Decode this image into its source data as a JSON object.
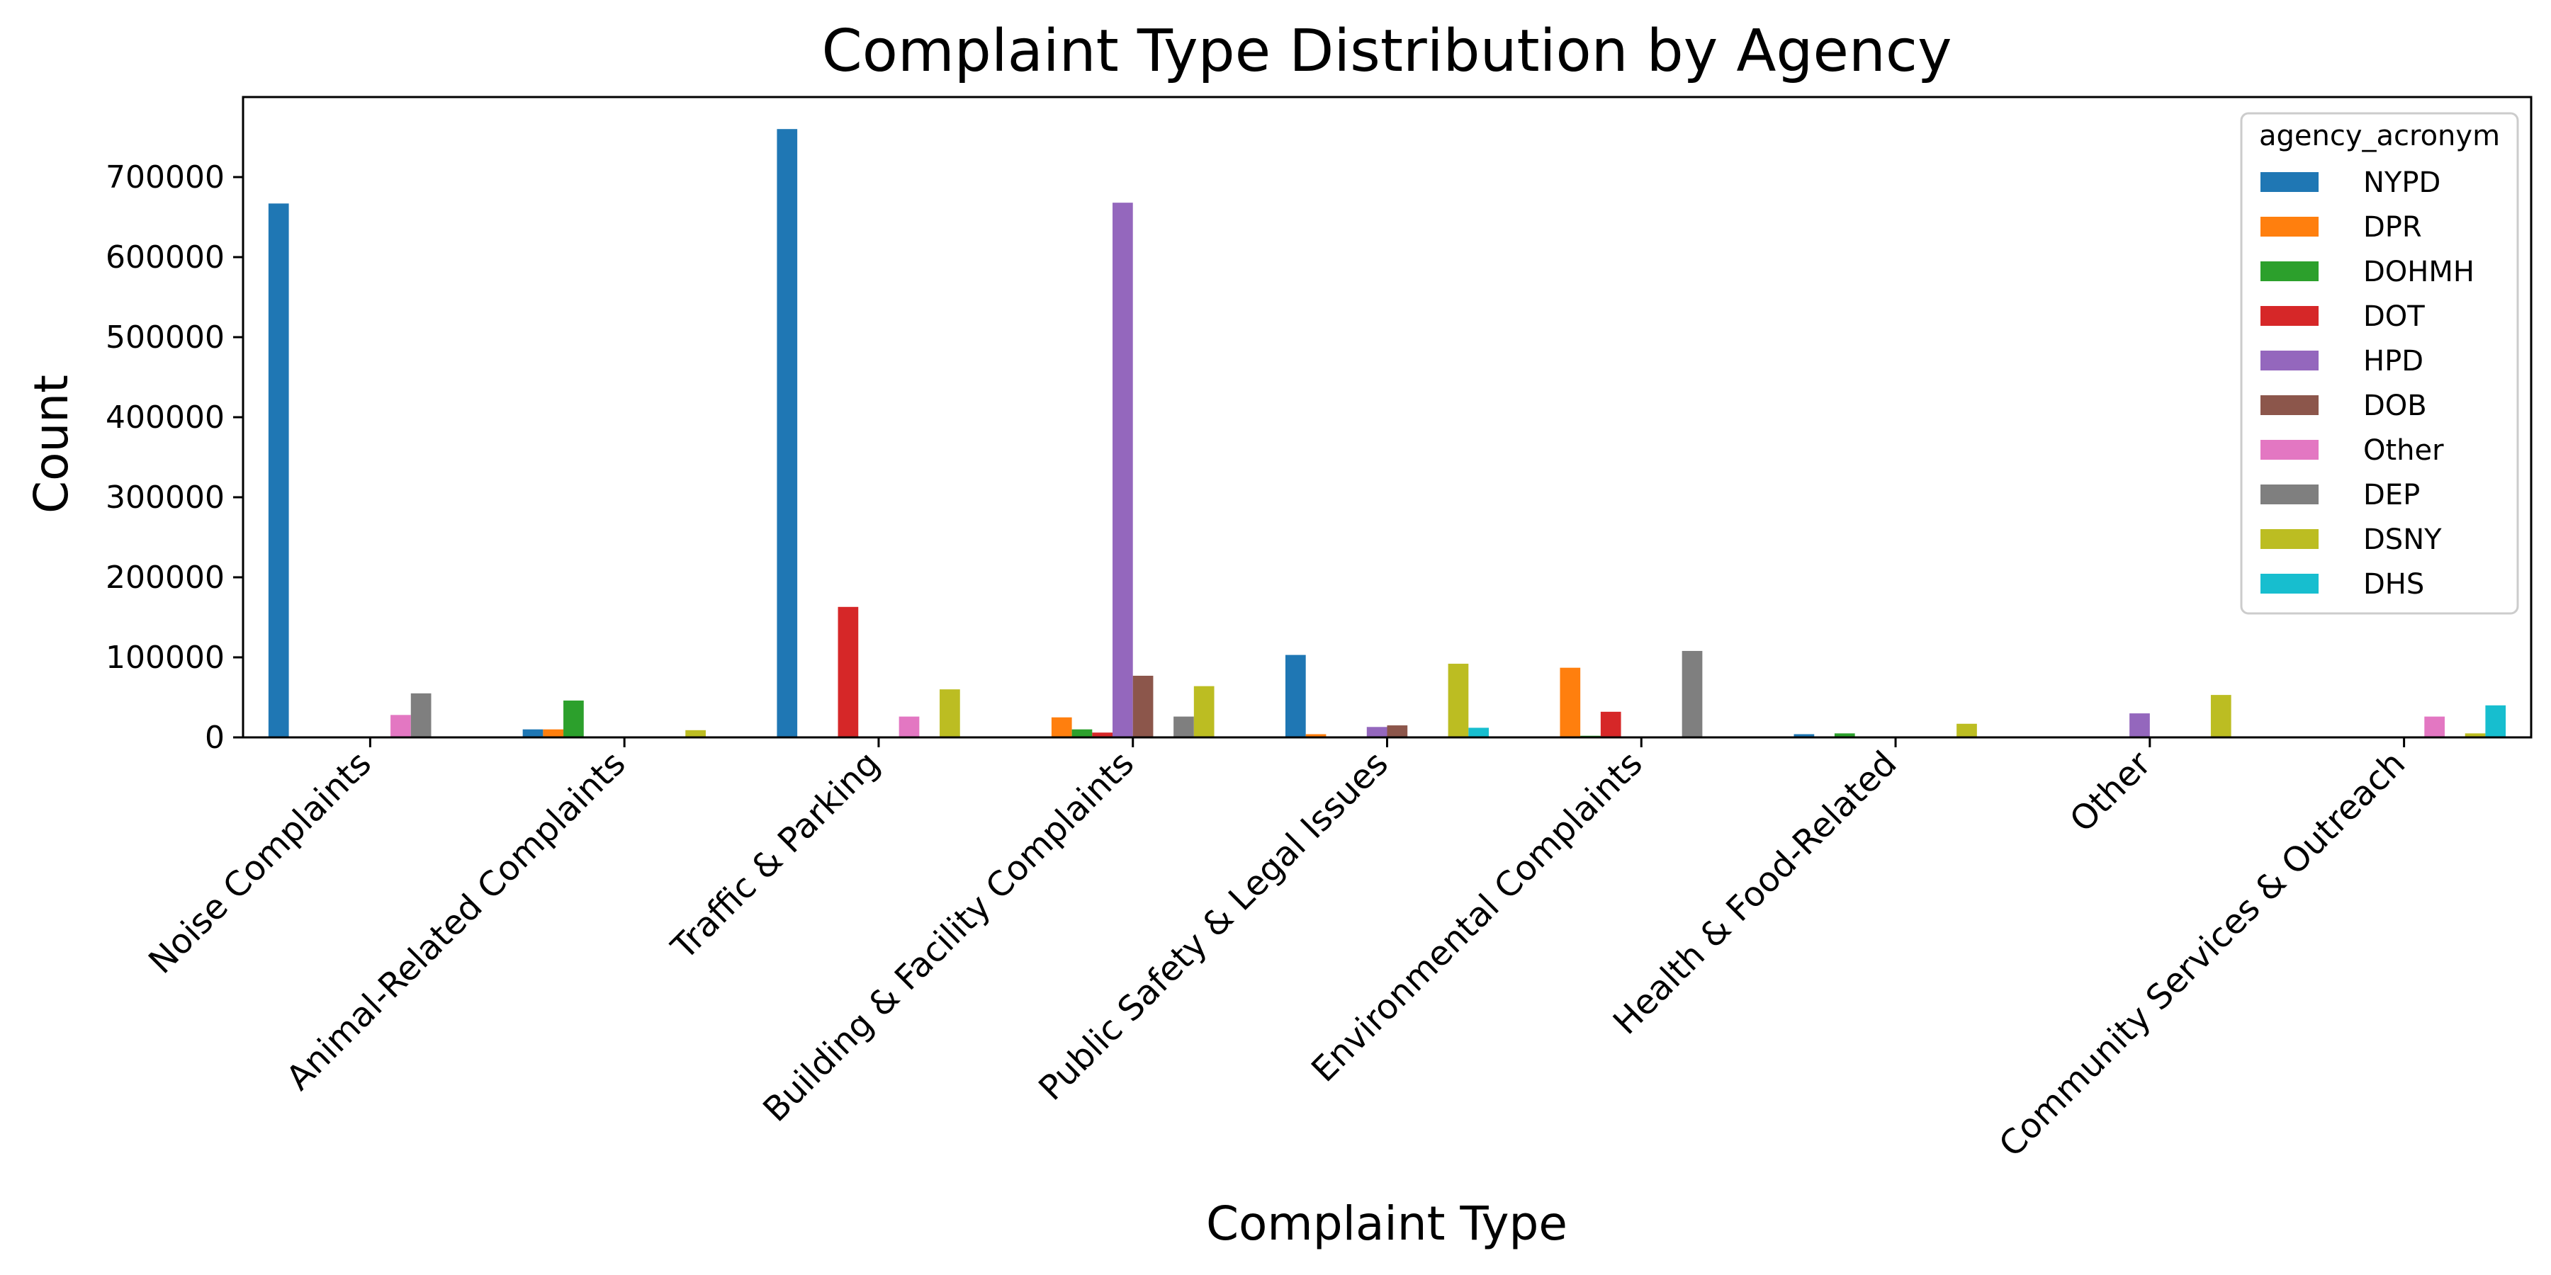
{
  "chart_data": {
    "type": "bar",
    "title": "Complaint Type Distribution by Agency",
    "xlabel": "Complaint Type",
    "ylabel": "Count",
    "ylim": [
      0,
      800000
    ],
    "yticks": [
      0,
      100000,
      200000,
      300000,
      400000,
      500000,
      600000,
      700000
    ],
    "ytick_labels": [
      "0",
      "100000",
      "200000",
      "300000",
      "400000",
      "500000",
      "600000",
      "700000"
    ],
    "grid": false,
    "legend": {
      "title": "agency_acronym",
      "position": "top-right"
    },
    "categories": [
      "Noise Complaints",
      "Animal-Related Complaints",
      "Traffic & Parking",
      "Building & Facility Complaints",
      "Public Safety & Legal Issues",
      "Environmental Complaints",
      "Health & Food-Related",
      "Other",
      "Community Services & Outreach"
    ],
    "series": [
      {
        "name": "NYPD",
        "color": "#1f77b4",
        "values": [
          667000,
          10000,
          760000,
          0,
          103000,
          0,
          4000,
          0,
          0
        ]
      },
      {
        "name": "DPR",
        "color": "#ff7f0e",
        "values": [
          0,
          10000,
          0,
          25000,
          4000,
          87000,
          0,
          0,
          0
        ]
      },
      {
        "name": "DOHMH",
        "color": "#2ca02c",
        "values": [
          0,
          46000,
          0,
          10000,
          0,
          2000,
          5000,
          0,
          0
        ]
      },
      {
        "name": "DOT",
        "color": "#d62728",
        "values": [
          0,
          0,
          163000,
          6000,
          0,
          32000,
          0,
          0,
          0
        ]
      },
      {
        "name": "HPD",
        "color": "#9467bd",
        "values": [
          0,
          0,
          0,
          668000,
          13000,
          0,
          0,
          30000,
          0
        ]
      },
      {
        "name": "DOB",
        "color": "#8c564b",
        "values": [
          0,
          0,
          0,
          77000,
          15000,
          0,
          0,
          0,
          0
        ]
      },
      {
        "name": "Other",
        "color": "#e377c2",
        "values": [
          28000,
          0,
          26000,
          0,
          0,
          0,
          0,
          0,
          26000
        ]
      },
      {
        "name": "DEP",
        "color": "#7f7f7f",
        "values": [
          55000,
          0,
          0,
          26000,
          0,
          108000,
          0,
          0,
          0
        ]
      },
      {
        "name": "DSNY",
        "color": "#bcbd22",
        "values": [
          0,
          9000,
          60000,
          64000,
          92000,
          0,
          17000,
          53000,
          5000
        ]
      },
      {
        "name": "DHS",
        "color": "#17becf",
        "values": [
          0,
          0,
          0,
          0,
          12000,
          0,
          0,
          0,
          40000
        ]
      }
    ]
  }
}
